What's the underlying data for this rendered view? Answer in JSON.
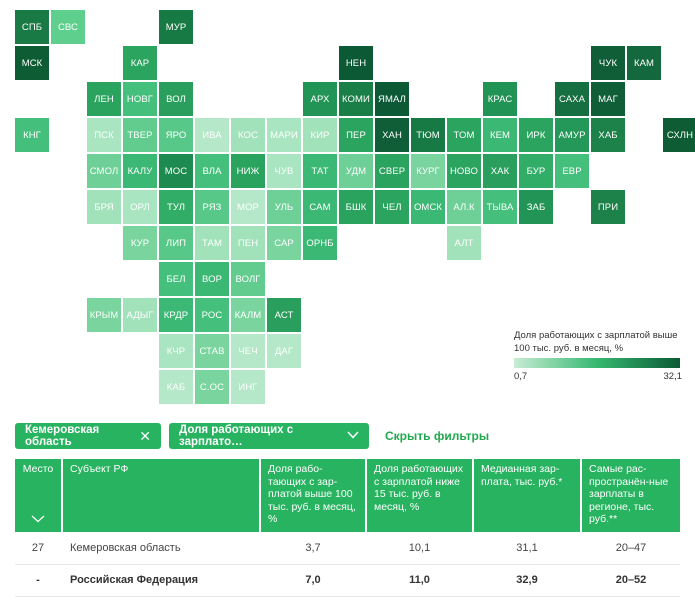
{
  "colors": {
    "accent": "#27b35f",
    "accent_dark": "#0b5a35",
    "text_on_accent": "#ffffff",
    "link": "#22a84f"
  },
  "map": {
    "regions": [
      {
        "code": "СПБ",
        "col": 0,
        "row": 0,
        "color": "#1a7a45"
      },
      {
        "code": "СВС",
        "col": 1,
        "row": 0,
        "color": "#5ecf8c"
      },
      {
        "code": "МУР",
        "col": 4,
        "row": 0,
        "color": "#177a44"
      },
      {
        "code": "МСК",
        "col": 0,
        "row": 1,
        "color": "#0e5c34"
      },
      {
        "code": "КАР",
        "col": 3,
        "row": 1,
        "color": "#2ba460"
      },
      {
        "code": "НЕН",
        "col": 9,
        "row": 1,
        "color": "#0b5a35"
      },
      {
        "code": "ЧУК",
        "col": 16,
        "row": 1,
        "color": "#0f5e37"
      },
      {
        "code": "КАМ",
        "col": 17,
        "row": 1,
        "color": "#13683d"
      },
      {
        "code": "ЛЕН",
        "col": 2,
        "row": 2,
        "color": "#2aa35e"
      },
      {
        "code": "НОВГ",
        "col": 3,
        "row": 2,
        "color": "#45c07c"
      },
      {
        "code": "ВОЛ",
        "col": 4,
        "row": 2,
        "color": "#2a9f5d"
      },
      {
        "code": "АРХ",
        "col": 8,
        "row": 2,
        "color": "#229556"
      },
      {
        "code": "КОМИ",
        "col": 9,
        "row": 2,
        "color": "#1a7e47"
      },
      {
        "code": "ЯМАЛ",
        "col": 10,
        "row": 2,
        "color": "#0b5a35"
      },
      {
        "code": "КРАС",
        "col": 13,
        "row": 2,
        "color": "#219455"
      },
      {
        "code": "САХА",
        "col": 15,
        "row": 2,
        "color": "#166f40"
      },
      {
        "code": "МАГ",
        "col": 16,
        "row": 2,
        "color": "#0f5e37"
      },
      {
        "code": "КНГ",
        "col": 0,
        "row": 3,
        "color": "#45c07c"
      },
      {
        "code": "ПСК",
        "col": 2,
        "row": 3,
        "color": "#a8e5c0"
      },
      {
        "code": "ТВЕР",
        "col": 3,
        "row": 3,
        "color": "#61cc8e"
      },
      {
        "code": "ЯРО",
        "col": 4,
        "row": 3,
        "color": "#57c887"
      },
      {
        "code": "ИВА",
        "col": 5,
        "row": 3,
        "color": "#b4e8c9"
      },
      {
        "code": "КОС",
        "col": 6,
        "row": 3,
        "color": "#a2e2bb"
      },
      {
        "code": "МАРИ",
        "col": 7,
        "row": 3,
        "color": "#a8e5c0"
      },
      {
        "code": "КИР",
        "col": 8,
        "row": 3,
        "color": "#a2e2bb"
      },
      {
        "code": "ПЕР",
        "col": 9,
        "row": 3,
        "color": "#2ba460"
      },
      {
        "code": "ХАН",
        "col": 10,
        "row": 3,
        "color": "#0f5e37"
      },
      {
        "code": "ТЮМ",
        "col": 11,
        "row": 3,
        "color": "#177a44"
      },
      {
        "code": "ТОМ",
        "col": 12,
        "row": 3,
        "color": "#2ba460"
      },
      {
        "code": "КЕМ",
        "col": 13,
        "row": 3,
        "color": "#3bb874"
      },
      {
        "code": "ИРК",
        "col": 14,
        "row": 3,
        "color": "#2ba460"
      },
      {
        "code": "АМУР",
        "col": 15,
        "row": 3,
        "color": "#239858"
      },
      {
        "code": "ХАБ",
        "col": 16,
        "row": 3,
        "color": "#1c8249"
      },
      {
        "code": "СХЛН",
        "col": 18,
        "row": 3,
        "color": "#0e5c34"
      },
      {
        "code": "СМОЛ",
        "col": 2,
        "row": 4,
        "color": "#6ed097"
      },
      {
        "code": "КАЛУ",
        "col": 3,
        "row": 4,
        "color": "#3bb874"
      },
      {
        "code": "МОС",
        "col": 4,
        "row": 4,
        "color": "#1d8a4f"
      },
      {
        "code": "ВЛА",
        "col": 5,
        "row": 4,
        "color": "#45c07c"
      },
      {
        "code": "НИЖ",
        "col": 6,
        "row": 4,
        "color": "#2aa35e"
      },
      {
        "code": "ЧУВ",
        "col": 7,
        "row": 4,
        "color": "#a8e5c0"
      },
      {
        "code": "ТАТ",
        "col": 8,
        "row": 4,
        "color": "#3bb874"
      },
      {
        "code": "УДМ",
        "col": 9,
        "row": 4,
        "color": "#6ed097"
      },
      {
        "code": "СВЕР",
        "col": 10,
        "row": 4,
        "color": "#2aa35e"
      },
      {
        "code": "КУРГ",
        "col": 11,
        "row": 4,
        "color": "#7ad49e"
      },
      {
        "code": "НОВО",
        "col": 12,
        "row": 4,
        "color": "#2ba460"
      },
      {
        "code": "ХАК",
        "col": 13,
        "row": 4,
        "color": "#2a9f5d"
      },
      {
        "code": "БУР",
        "col": 14,
        "row": 4,
        "color": "#31ad67"
      },
      {
        "code": "ЕВР",
        "col": 15,
        "row": 4,
        "color": "#45c07c"
      },
      {
        "code": "БРЯ",
        "col": 2,
        "row": 5,
        "color": "#a2e2bb"
      },
      {
        "code": "ОРЛ",
        "col": 3,
        "row": 5,
        "color": "#a8e5c0"
      },
      {
        "code": "ТУЛ",
        "col": 4,
        "row": 5,
        "color": "#31ad67"
      },
      {
        "code": "РЯЗ",
        "col": 5,
        "row": 5,
        "color": "#57c887"
      },
      {
        "code": "МОР",
        "col": 6,
        "row": 5,
        "color": "#b4e8c9"
      },
      {
        "code": "УЛЬ",
        "col": 7,
        "row": 5,
        "color": "#6ed097"
      },
      {
        "code": "САМ",
        "col": 8,
        "row": 5,
        "color": "#3bb874"
      },
      {
        "code": "БШК",
        "col": 9,
        "row": 5,
        "color": "#2aa35e"
      },
      {
        "code": "ЧЕЛ",
        "col": 10,
        "row": 5,
        "color": "#2ba460"
      },
      {
        "code": "ОМСК",
        "col": 11,
        "row": 5,
        "color": "#3bb874"
      },
      {
        "code": "АЛ.К",
        "col": 12,
        "row": 5,
        "color": "#6ed097"
      },
      {
        "code": "ТЫВА",
        "col": 13,
        "row": 5,
        "color": "#45c07c"
      },
      {
        "code": "ЗАБ",
        "col": 14,
        "row": 5,
        "color": "#229556"
      },
      {
        "code": "ПРИ",
        "col": 16,
        "row": 5,
        "color": "#1c8249"
      },
      {
        "code": "КУР",
        "col": 3,
        "row": 6,
        "color": "#7ad49e"
      },
      {
        "code": "ЛИП",
        "col": 4,
        "row": 6,
        "color": "#57c887"
      },
      {
        "code": "ТАМ",
        "col": 5,
        "row": 6,
        "color": "#a2e2bb"
      },
      {
        "code": "ПЕН",
        "col": 6,
        "row": 6,
        "color": "#a2e2bb"
      },
      {
        "code": "САР",
        "col": 7,
        "row": 6,
        "color": "#7ad49e"
      },
      {
        "code": "ОРНБ",
        "col": 8,
        "row": 6,
        "color": "#3bb874"
      },
      {
        "code": "АЛТ",
        "col": 12,
        "row": 6,
        "color": "#a2e2bb"
      },
      {
        "code": "БЕЛ",
        "col": 4,
        "row": 7,
        "color": "#45c07c"
      },
      {
        "code": "ВОР",
        "col": 5,
        "row": 7,
        "color": "#3bb874"
      },
      {
        "code": "ВОЛГ",
        "col": 6,
        "row": 7,
        "color": "#61cc8e"
      },
      {
        "code": "КРЫМ",
        "col": 2,
        "row": 8,
        "color": "#7ad49e"
      },
      {
        "code": "АДЫГ",
        "col": 3,
        "row": 8,
        "color": "#a2e2bb"
      },
      {
        "code": "КРДР",
        "col": 4,
        "row": 8,
        "color": "#3bb874"
      },
      {
        "code": "РОС",
        "col": 5,
        "row": 8,
        "color": "#45c07c"
      },
      {
        "code": "КАЛМ",
        "col": 6,
        "row": 8,
        "color": "#7ad49e"
      },
      {
        "code": "АСТ",
        "col": 7,
        "row": 8,
        "color": "#2a9f5d"
      },
      {
        "code": "КЧР",
        "col": 4,
        "row": 9,
        "color": "#a8e5c0"
      },
      {
        "code": "СТАВ",
        "col": 5,
        "row": 9,
        "color": "#7ad49e"
      },
      {
        "code": "ЧЕЧ",
        "col": 6,
        "row": 9,
        "color": "#b4e8c9"
      },
      {
        "code": "ДАГ",
        "col": 7,
        "row": 9,
        "color": "#b4e8c9"
      },
      {
        "code": "КАБ",
        "col": 4,
        "row": 10,
        "color": "#b4e8c9"
      },
      {
        "code": "С.ОС",
        "col": 5,
        "row": 10,
        "color": "#7ad49e"
      },
      {
        "code": "ИНГ",
        "col": 6,
        "row": 10,
        "color": "#b4e8c9"
      }
    ]
  },
  "legend": {
    "title": "Доля работающих с зарплатой выше 100 тыс. руб. в месяц, %",
    "min": "0,7",
    "max": "32,1"
  },
  "filters": {
    "region_chip": "Кемеровская область",
    "region_chip_icon": "close-icon",
    "metric_chip": "Доля работающих с зарплато…",
    "metric_chip_icon": "chevron-down-icon",
    "hide_label": "Скрыть фильтры"
  },
  "table": {
    "headers": {
      "place": "Место",
      "subject": "Субъект РФ",
      "share_high": "Доля рабо-тающих с зар-платой выше 100 тыс. руб. в месяц, %",
      "share_low": "Доля работающих с зарплатой ниже 15 тыс. руб. в месяц, %",
      "median": "Медианная зар-плата, тыс. руб.*",
      "common": "Самые рас-пространён-ные зарплаты в регионе, тыс. руб.**"
    },
    "sort_icon": "chevron-down-icon",
    "rows": [
      {
        "place": "27",
        "subject": "Кемеровская область",
        "share_high": "3,7",
        "share_low": "10,1",
        "median": "31,1",
        "common": "20–47"
      },
      {
        "place": "-",
        "subject": "Российская Федерация",
        "share_high": "7,0",
        "share_low": "11,0",
        "median": "32,9",
        "common": "20–52"
      }
    ]
  }
}
